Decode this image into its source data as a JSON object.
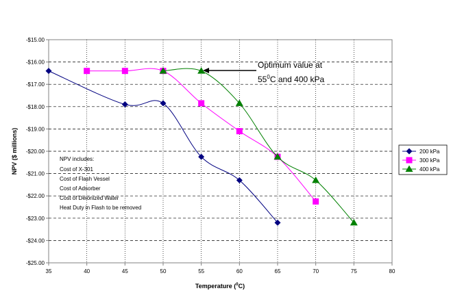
{
  "chart_data": {
    "type": "line",
    "title": "",
    "xlabel": "Temperature (°C)",
    "xlabel_parts": {
      "main": "Temperature (",
      "sup": "0",
      "end": "C)"
    },
    "ylabel": "NPV ($ millions)",
    "xlim": [
      35,
      80
    ],
    "ylim": [
      -25,
      -15
    ],
    "x_ticks": [
      35,
      40,
      45,
      50,
      55,
      60,
      65,
      70,
      75,
      80
    ],
    "y_ticks": [
      -15,
      -16,
      -17,
      -18,
      -19,
      -20,
      -21,
      -22,
      -23,
      -24,
      -25
    ],
    "y_tick_labels": [
      "-$15.00",
      "-$16.00",
      "-$17.00",
      "-$18.00",
      "-$19.00",
      "-$20.00",
      "-$21.00",
      "-$22.00",
      "-$23.00",
      "-$24.00",
      "-$25.00"
    ],
    "grid": "horizontal dashed + vertical dotted",
    "legend_position": "right",
    "series": [
      {
        "name": "200 kPa",
        "color": "#000080",
        "marker": "diamond",
        "x": [
          35,
          45,
          50,
          55,
          60,
          65
        ],
        "y": [
          -16.4,
          -17.9,
          -17.85,
          -20.25,
          -21.3,
          -23.2
        ]
      },
      {
        "name": "300 kPa",
        "color": "#ff00ff",
        "marker": "square",
        "x": [
          40,
          45,
          50,
          55,
          60,
          65,
          70
        ],
        "y": [
          -16.4,
          -16.4,
          -16.4,
          -17.85,
          -19.1,
          -20.25,
          -22.25
        ]
      },
      {
        "name": "400 kPa",
        "color": "#008000",
        "marker": "triangle",
        "x": [
          50,
          55,
          60,
          65,
          70,
          75
        ],
        "y": [
          -16.4,
          -16.4,
          -17.85,
          -20.25,
          -21.3,
          -23.2
        ]
      }
    ],
    "annotation": {
      "line1": "Optimum value at",
      "line2_pre": "55",
      "line2_sup": "0",
      "line2_post": "C and 400 kPa",
      "points_to": {
        "x": 55,
        "y": -16.4
      }
    },
    "note": {
      "lines": [
        "NPV includes:",
        "Cost of X-301",
        "Cost of Flash Vessel",
        "Cost of Adsorber",
        "Cost of Deionized Water",
        "Heat Duty in Flash to be removed"
      ]
    }
  }
}
